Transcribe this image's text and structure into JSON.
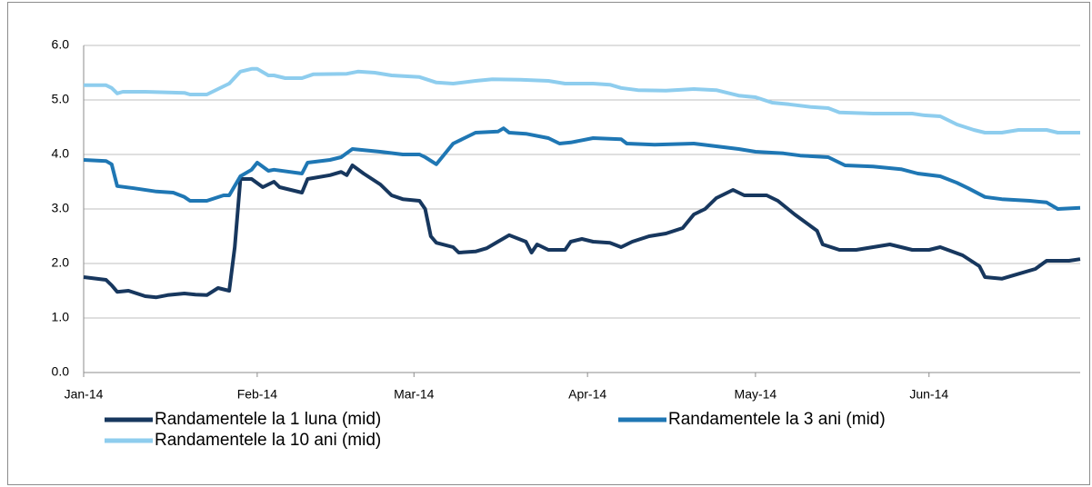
{
  "chart_data": {
    "type": "line",
    "xlim": [
      0,
      178
    ],
    "xticks": [
      {
        "value": 0,
        "label": "Jan-14"
      },
      {
        "value": 31,
        "label": "Feb-14"
      },
      {
        "value": 59,
        "label": "Mar-14"
      },
      {
        "value": 90,
        "label": "Apr-14"
      },
      {
        "value": 120,
        "label": "May-14"
      },
      {
        "value": 151,
        "label": "Jun-14"
      }
    ],
    "ylim": [
      0,
      6
    ],
    "yticks": [
      {
        "value": 0,
        "label": "0.0"
      },
      {
        "value": 1,
        "label": "1.0"
      },
      {
        "value": 2,
        "label": "2.0"
      },
      {
        "value": 3,
        "label": "3.0"
      },
      {
        "value": 4,
        "label": "4.0"
      },
      {
        "value": 5,
        "label": "5.0"
      },
      {
        "value": 6,
        "label": "6.0"
      }
    ],
    "grid": true,
    "legend": "bottom",
    "series": [
      {
        "name": "Randamentele la 1 luna (mid)",
        "color": "#17375e",
        "x": [
          0,
          4,
          5,
          6,
          8,
          11,
          13,
          15,
          18,
          20,
          22,
          24,
          26,
          27,
          28,
          30,
          32,
          34,
          35,
          39,
          40,
          44,
          46,
          47,
          48,
          50,
          53,
          55,
          57,
          60,
          61,
          62,
          63,
          66,
          67,
          70,
          72,
          74,
          76,
          79,
          80,
          81,
          83,
          86,
          87,
          89,
          91,
          94,
          96,
          98,
          101,
          104,
          107,
          109,
          111,
          113,
          116,
          118,
          122,
          124,
          127,
          131,
          132,
          135,
          138,
          141,
          144,
          148,
          151,
          153,
          157,
          160,
          161,
          164,
          166,
          170,
          172,
          174,
          176,
          178
        ],
        "values": [
          1.75,
          1.7,
          1.6,
          1.48,
          1.5,
          1.4,
          1.38,
          1.42,
          1.45,
          1.43,
          1.42,
          1.55,
          1.5,
          2.3,
          3.55,
          3.55,
          3.4,
          3.5,
          3.4,
          3.3,
          3.55,
          3.62,
          3.68,
          3.62,
          3.8,
          3.65,
          3.45,
          3.25,
          3.18,
          3.15,
          3.0,
          2.5,
          2.38,
          2.3,
          2.2,
          2.22,
          2.28,
          2.4,
          2.52,
          2.4,
          2.2,
          2.35,
          2.25,
          2.25,
          2.4,
          2.45,
          2.4,
          2.38,
          2.3,
          2.4,
          2.5,
          2.55,
          2.65,
          2.9,
          3.0,
          3.2,
          3.35,
          3.25,
          3.25,
          3.15,
          2.9,
          2.6,
          2.35,
          2.25,
          2.25,
          2.3,
          2.35,
          2.25,
          2.25,
          2.3,
          2.15,
          1.95,
          1.75,
          1.72,
          1.78,
          1.9,
          2.05,
          2.05,
          2.05,
          2.08
        ]
      },
      {
        "name": "Randamentele la 3 ani (mid)",
        "color": "#1f77b4",
        "x": [
          0,
          4,
          5,
          6,
          9,
          13,
          16,
          18,
          19,
          22,
          25,
          26,
          28,
          30,
          31,
          33,
          34,
          39,
          40,
          44,
          46,
          48,
          53,
          57,
          60,
          61,
          63,
          66,
          69,
          70,
          74,
          75,
          76,
          79,
          83,
          85,
          87,
          91,
          96,
          97,
          102,
          109,
          113,
          117,
          120,
          125,
          128,
          133,
          136,
          141,
          146,
          149,
          153,
          156,
          158,
          161,
          164,
          169,
          172,
          174,
          178
        ],
        "values": [
          3.9,
          3.88,
          3.82,
          3.42,
          3.38,
          3.32,
          3.3,
          3.22,
          3.15,
          3.15,
          3.25,
          3.25,
          3.6,
          3.72,
          3.85,
          3.7,
          3.72,
          3.65,
          3.85,
          3.9,
          3.95,
          4.1,
          4.05,
          4.0,
          4.0,
          3.95,
          3.82,
          4.2,
          4.35,
          4.4,
          4.42,
          4.48,
          4.4,
          4.38,
          4.3,
          4.2,
          4.22,
          4.3,
          4.28,
          4.2,
          4.18,
          4.2,
          4.15,
          4.1,
          4.05,
          4.02,
          3.98,
          3.95,
          3.8,
          3.78,
          3.73,
          3.65,
          3.6,
          3.48,
          3.38,
          3.22,
          3.18,
          3.15,
          3.12,
          3.0,
          3.02
        ]
      },
      {
        "name": "Randamentele la 10 ani (mid)",
        "color": "#8ecdee",
        "x": [
          0,
          4,
          5,
          6,
          7,
          11,
          18,
          19,
          22,
          25,
          26,
          28,
          30,
          31,
          33,
          34,
          36,
          39,
          41,
          47,
          49,
          52,
          55,
          60,
          63,
          66,
          70,
          73,
          78,
          83,
          86,
          91,
          94,
          96,
          99,
          104,
          109,
          113,
          117,
          120,
          123,
          126,
          130,
          133,
          135,
          141,
          148,
          150,
          153,
          156,
          159,
          161,
          164,
          167,
          172,
          174,
          178
        ],
        "values": [
          5.27,
          5.27,
          5.22,
          5.12,
          5.15,
          5.15,
          5.13,
          5.1,
          5.1,
          5.25,
          5.3,
          5.52,
          5.57,
          5.57,
          5.45,
          5.45,
          5.4,
          5.4,
          5.47,
          5.48,
          5.52,
          5.5,
          5.45,
          5.42,
          5.32,
          5.3,
          5.35,
          5.38,
          5.37,
          5.35,
          5.3,
          5.3,
          5.28,
          5.22,
          5.18,
          5.17,
          5.2,
          5.18,
          5.08,
          5.05,
          4.95,
          4.92,
          4.87,
          4.85,
          4.77,
          4.75,
          4.75,
          4.72,
          4.7,
          4.55,
          4.45,
          4.4,
          4.4,
          4.45,
          4.45,
          4.4,
          4.4
        ]
      }
    ]
  }
}
